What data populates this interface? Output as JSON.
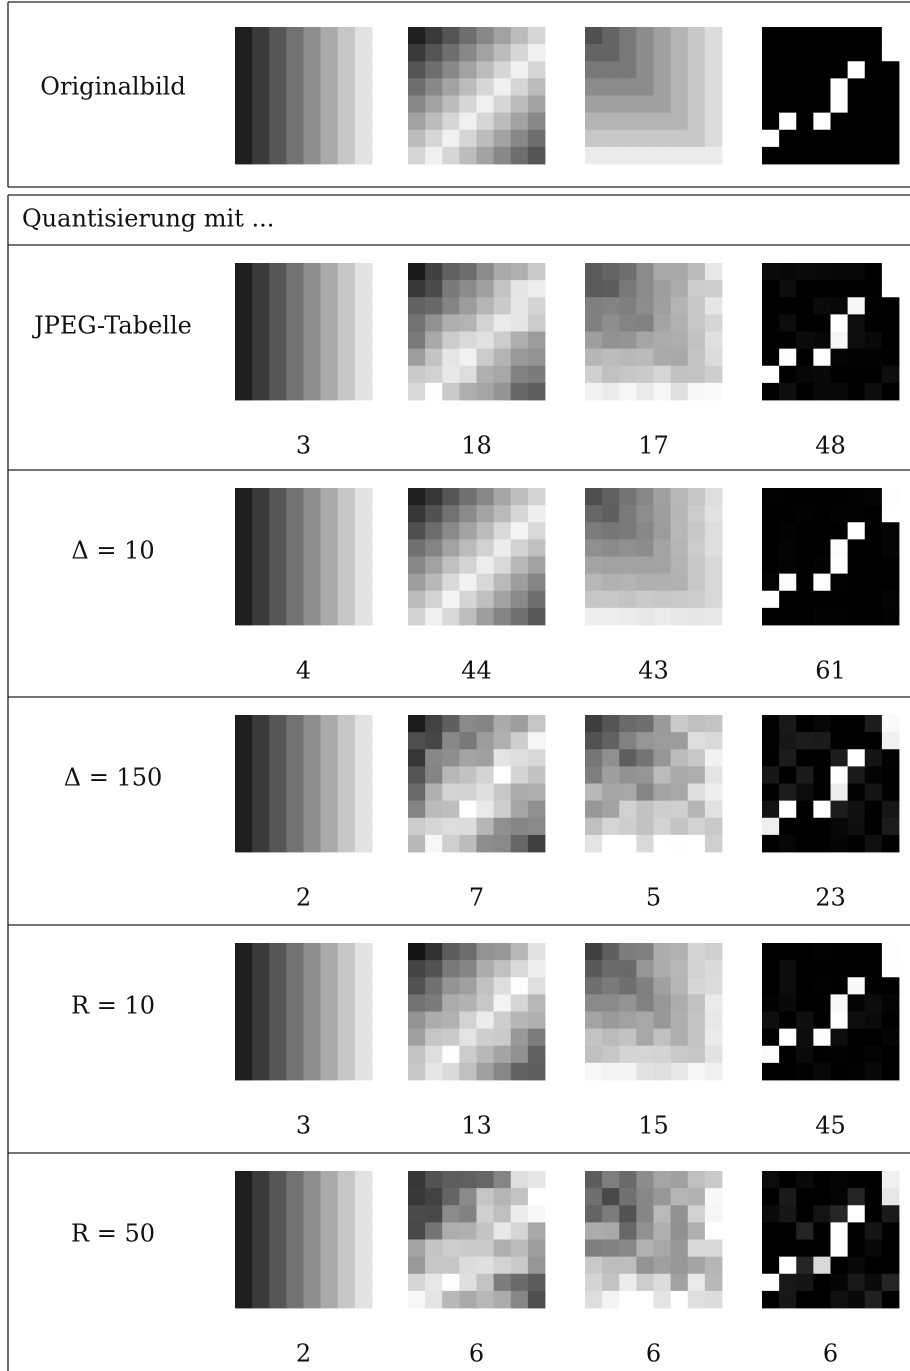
{
  "header": {
    "title": "Originalbild"
  },
  "table": {
    "caption": "Quantisierung mit ...",
    "rows": [
      {
        "label": "JPEG-Tabelle",
        "values": [
          3,
          18,
          17,
          48
        ]
      },
      {
        "label": "Δ = 10",
        "values": [
          4,
          44,
          43,
          61
        ]
      },
      {
        "label": "Δ = 150",
        "values": [
          2,
          7,
          5,
          23
        ]
      },
      {
        "label": "R = 10",
        "values": [
          3,
          13,
          15,
          45
        ]
      },
      {
        "label": "R = 50",
        "values": [
          2,
          6,
          6,
          6
        ]
      }
    ]
  }
}
